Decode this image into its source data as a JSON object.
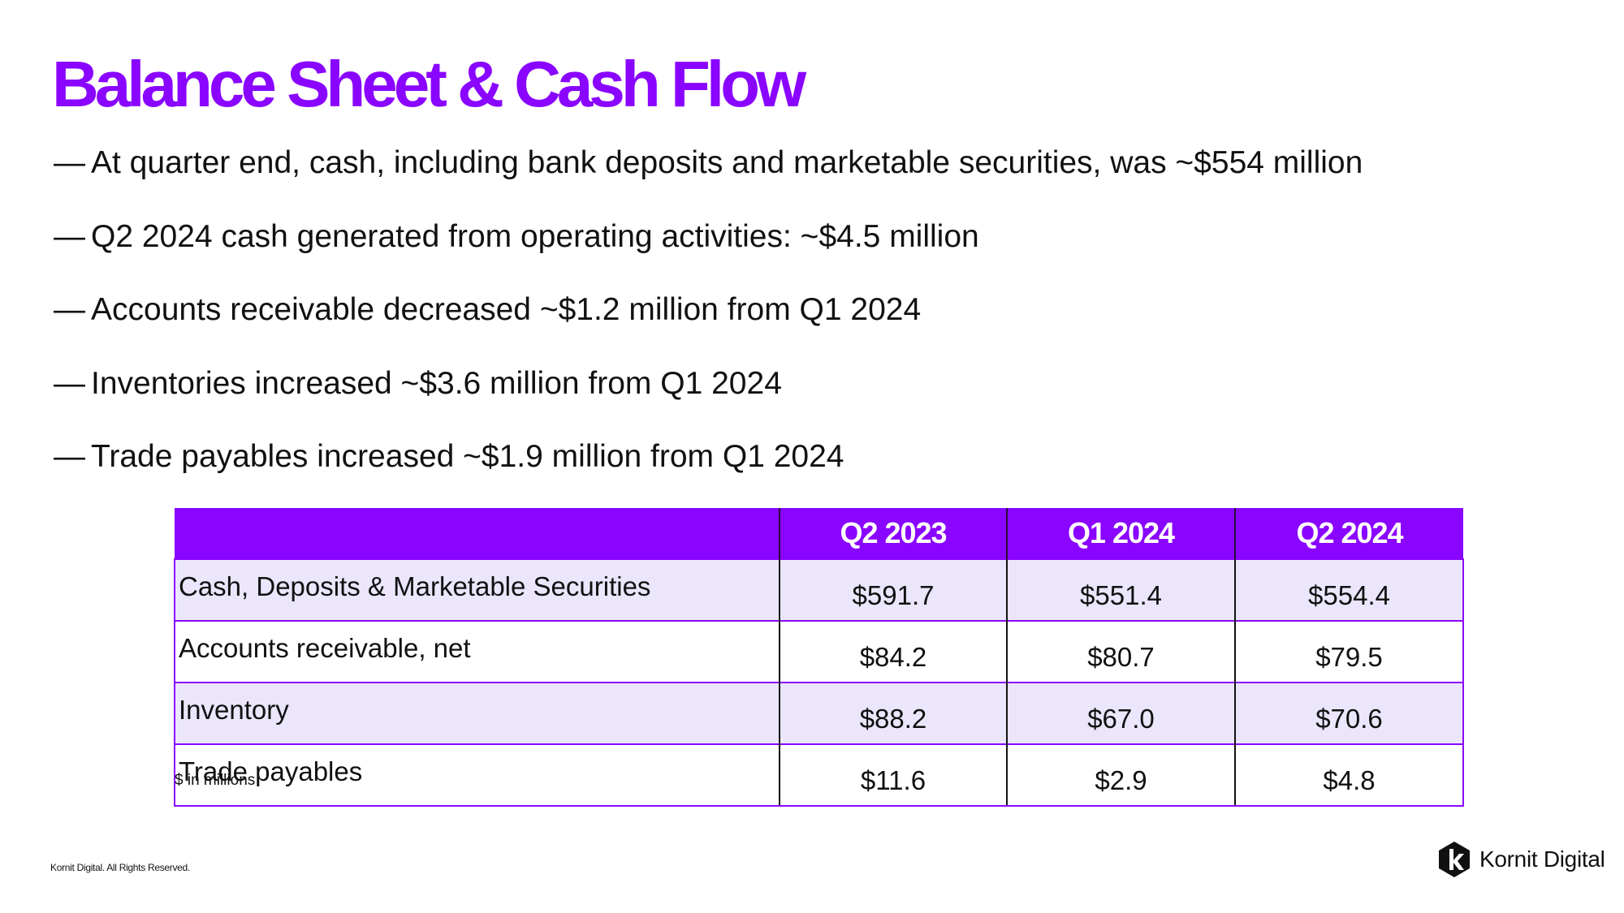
{
  "title": "Balance Sheet & Cash Flow",
  "bullet_marker": "—",
  "bullets": [
    "At quarter end, cash, including bank deposits and marketable securities, was ~$554 million",
    "Q2 2024 cash generated from operating activities: ~$4.5 million",
    "Accounts receivable decreased ~$1.2 million from Q1 2024",
    "Inventories increased ~$3.6 million from Q1 2024",
    "Trade payables increased ~$1.9 million from Q1 2024"
  ],
  "table": {
    "headers": [
      "",
      "Q2 2023",
      "Q1 2024",
      "Q2 2024"
    ],
    "rows": [
      {
        "label": "Cash, Deposits & Marketable Securities",
        "values": [
          "$591.7",
          "$551.4",
          "$554.4"
        ]
      },
      {
        "label": "Accounts receivable, net",
        "values": [
          "$84.2",
          "$80.7",
          "$79.5"
        ]
      },
      {
        "label": "Inventory",
        "values": [
          "$88.2",
          "$67.0",
          "$70.6"
        ]
      },
      {
        "label": "Trade payables",
        "values": [
          "$11.6",
          "$2.9",
          "$4.8"
        ]
      }
    ]
  },
  "note": "$ in millions",
  "footer": {
    "copyright": "Kornit Digital. All Rights Reserved.",
    "logo_text": "Kornit Digital",
    "logo_icon": "kornit-k-logo-icon"
  },
  "colors": {
    "accent": "#8a05ff",
    "row_shade": "#ebe6fb",
    "text": "#111111"
  }
}
